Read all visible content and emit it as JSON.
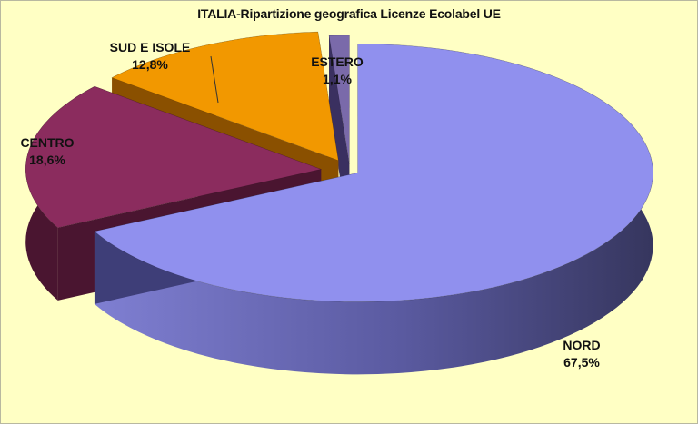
{
  "chart_data": {
    "type": "pie",
    "title": "ITALIA-Ripartizione geografica Licenze Ecolabel UE",
    "slices": [
      {
        "label": "NORD",
        "value": 67.5,
        "value_label": "67,5%",
        "color": "#9090ee"
      },
      {
        "label": "CENTRO",
        "value": 18.6,
        "value_label": "18,6%",
        "color": "#8b2c5e"
      },
      {
        "label": "SUD E ISOLE",
        "value": 12.8,
        "value_label": "12,8%",
        "color": "#f29800"
      },
      {
        "label": "ESTERO",
        "value": 1.1,
        "value_label": "1,1%",
        "color": "#7a6aaa"
      }
    ],
    "style": "3d-exploded",
    "background": "#ffffc4"
  }
}
